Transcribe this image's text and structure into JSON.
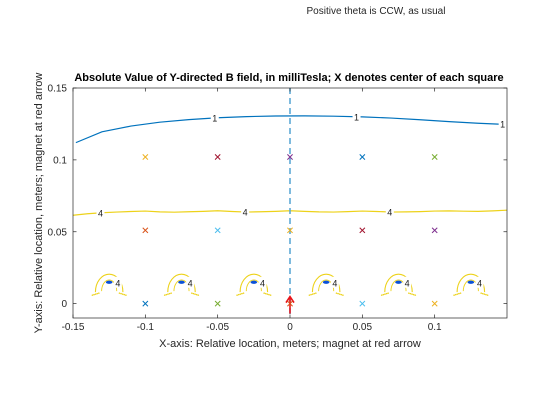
{
  "figure": {
    "suptitle": "Positive theta is CCW, as usual"
  },
  "chart_data": {
    "type": "contour",
    "title": "Absolute Value of Y-directed B field, in milliTesla;  X denotes center of each square",
    "xlabel": "X-axis: Relative location, meters;  magnet at red arrow",
    "ylabel": "Y-axis: Relative location, meters;  magnet at red arrow",
    "xlim": [
      -0.15,
      0.15
    ],
    "ylim": [
      -0.01,
      0.15
    ],
    "x_ticks": [
      -0.15,
      -0.1,
      -0.05,
      0,
      0.05,
      0.1
    ],
    "x_tick_labels": [
      "-0.15",
      "-0.1",
      "-0.05",
      "0",
      "0.05",
      "0.1"
    ],
    "y_ticks": [
      0,
      0.05,
      0.1,
      0.15
    ],
    "y_tick_labels": [
      "0",
      "0.05",
      "0.1",
      "0.15"
    ],
    "grid": false,
    "legend": "none",
    "contours": [
      {
        "level": 1,
        "label": "1",
        "color": "#0072BD",
        "points": [
          [
            -0.148,
            0.112
          ],
          [
            -0.13,
            0.1195
          ],
          [
            -0.11,
            0.1235
          ],
          [
            -0.09,
            0.1262
          ],
          [
            -0.07,
            0.128
          ],
          [
            -0.05,
            0.1293
          ],
          [
            -0.03,
            0.1301
          ],
          [
            -0.01,
            0.1305
          ],
          [
            0.01,
            0.1306
          ],
          [
            0.03,
            0.1304
          ],
          [
            0.05,
            0.1299
          ],
          [
            0.07,
            0.1291
          ],
          [
            0.09,
            0.1279
          ],
          [
            0.11,
            0.1266
          ],
          [
            0.13,
            0.1255
          ],
          [
            0.146,
            0.1248
          ]
        ],
        "label_positions": [
          [
            -0.052,
            0.129
          ],
          [
            0.046,
            0.13
          ],
          [
            0.147,
            0.1248
          ]
        ]
      },
      {
        "level": 4,
        "label": "4",
        "color": "#EDD21A",
        "points": [
          [
            -0.15,
            0.0615
          ],
          [
            -0.14,
            0.0625
          ],
          [
            -0.13,
            0.0632
          ],
          [
            -0.12,
            0.0637
          ],
          [
            -0.11,
            0.0641
          ],
          [
            -0.1,
            0.0644
          ],
          [
            -0.09,
            0.0638
          ],
          [
            -0.08,
            0.0636
          ],
          [
            -0.07,
            0.0639
          ],
          [
            -0.06,
            0.0642
          ],
          [
            -0.05,
            0.0646
          ],
          [
            -0.04,
            0.0641
          ],
          [
            -0.03,
            0.0637
          ],
          [
            -0.02,
            0.0639
          ],
          [
            -0.01,
            0.0642
          ],
          [
            0.0,
            0.0646
          ],
          [
            0.01,
            0.0642
          ],
          [
            0.02,
            0.0638
          ],
          [
            0.03,
            0.0637
          ],
          [
            0.04,
            0.064
          ],
          [
            0.05,
            0.0644
          ],
          [
            0.06,
            0.0641
          ],
          [
            0.07,
            0.0637
          ],
          [
            0.08,
            0.0638
          ],
          [
            0.09,
            0.064
          ],
          [
            0.1,
            0.0644
          ],
          [
            0.11,
            0.0645
          ],
          [
            0.12,
            0.0643
          ],
          [
            0.13,
            0.0642
          ],
          [
            0.14,
            0.0645
          ],
          [
            0.15,
            0.065
          ]
        ],
        "label_positions": [
          [
            -0.131,
            0.063
          ],
          [
            -0.031,
            0.0637
          ],
          [
            0.069,
            0.0637
          ]
        ]
      }
    ],
    "local_contours": {
      "centers_x": [
        -0.125,
        -0.075,
        -0.025,
        0.025,
        0.075,
        0.125
      ],
      "outer_color": "#EDD21A",
      "inner_color": "#0A50D8",
      "label": "4",
      "label_offset_x": 0.006
    },
    "square_centers": [
      {
        "x": -0.1,
        "y": 0.102,
        "color": "#EDB120"
      },
      {
        "x": -0.05,
        "y": 0.102,
        "color": "#A2142F"
      },
      {
        "x": 0.0,
        "y": 0.102,
        "color": "#7E2F8E"
      },
      {
        "x": 0.05,
        "y": 0.102,
        "color": "#0072BD"
      },
      {
        "x": 0.1,
        "y": 0.102,
        "color": "#77AC30"
      },
      {
        "x": -0.1,
        "y": 0.051,
        "color": "#D95319"
      },
      {
        "x": -0.05,
        "y": 0.051,
        "color": "#4DBEEE"
      },
      {
        "x": 0.0,
        "y": 0.051,
        "color": "#EDB120"
      },
      {
        "x": 0.05,
        "y": 0.051,
        "color": "#A2142F"
      },
      {
        "x": 0.1,
        "y": 0.051,
        "color": "#7E2F8E"
      },
      {
        "x": -0.1,
        "y": 0.0,
        "color": "#0072BD"
      },
      {
        "x": -0.05,
        "y": 0.0,
        "color": "#77AC30"
      },
      {
        "x": 0.0,
        "y": 0.0,
        "color": "#D95319"
      },
      {
        "x": 0.05,
        "y": 0.0,
        "color": "#4DBEEE"
      },
      {
        "x": 0.1,
        "y": 0.0,
        "color": "#EDB120"
      }
    ],
    "magnet_axis": {
      "x": 0.0,
      "color": "#5DA9D6"
    },
    "magnet": {
      "x": 0.0,
      "y": 0.0,
      "color": "#E8141A"
    }
  }
}
